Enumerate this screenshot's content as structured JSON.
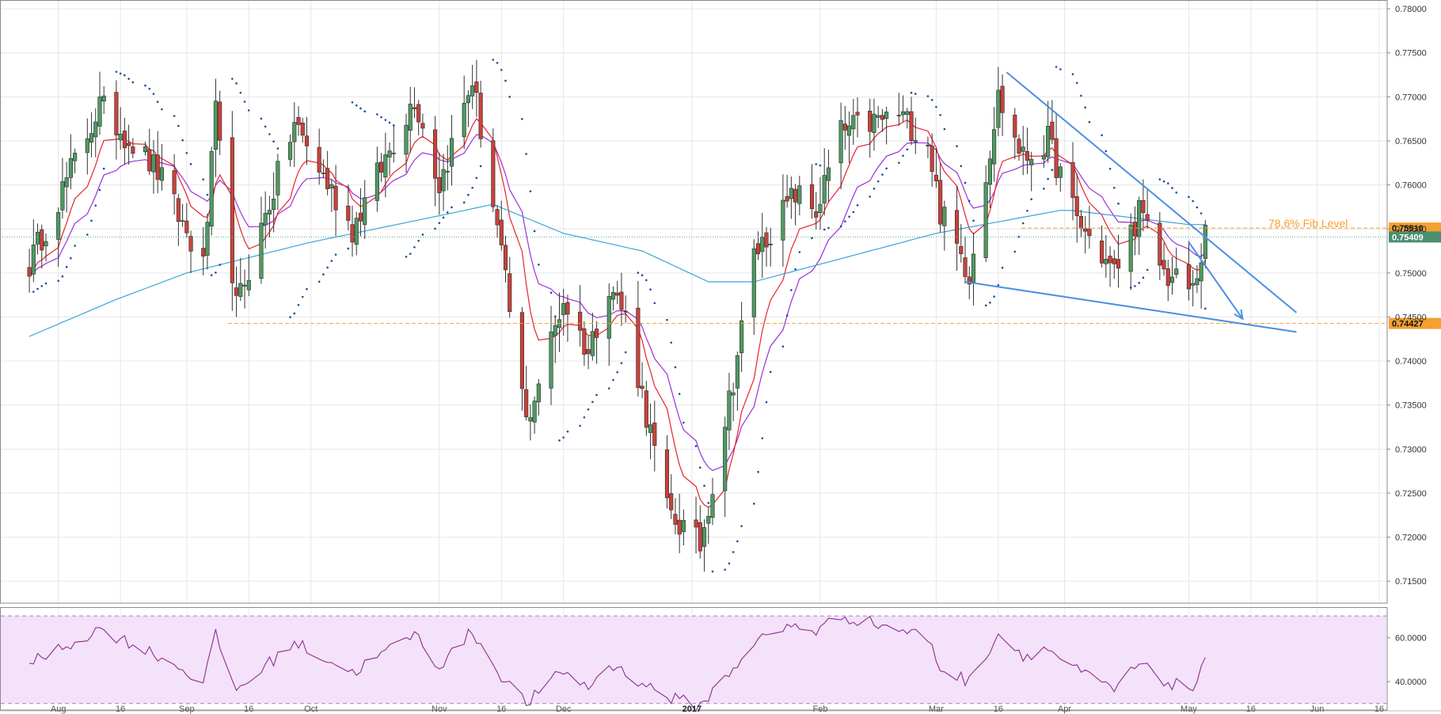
{
  "chart_data": {
    "type": "candlestick",
    "title": "",
    "y_axis": {
      "range": [
        0.7125,
        0.781
      ],
      "ticks": [
        "0.78000",
        "0.77500",
        "0.77000",
        "0.76500",
        "0.76000",
        "0.75500",
        "0.75000",
        "0.74500",
        "0.74000",
        "0.73500",
        "0.73000",
        "0.72500",
        "0.72000",
        "0.71500"
      ]
    },
    "x_axis": {
      "ticks": [
        {
          "label": "Aug",
          "date": "2016-08-01"
        },
        {
          "label": "16",
          "date": "2016-08-16"
        },
        {
          "label": "Sep",
          "date": "2016-09-01"
        },
        {
          "label": "16",
          "date": "2016-09-16"
        },
        {
          "label": "Oct",
          "date": "2016-10-01"
        },
        {
          "label": "Nov",
          "date": "2016-11-01"
        },
        {
          "label": "16",
          "date": "2016-11-16"
        },
        {
          "label": "Dec",
          "date": "2016-12-01"
        },
        {
          "label": "2017",
          "date": "2017-01-01",
          "bold": true
        },
        {
          "label": "Feb",
          "date": "2017-02-01"
        },
        {
          "label": "Mar",
          "date": "2017-03-01"
        },
        {
          "label": "16",
          "date": "2017-03-16"
        },
        {
          "label": "Apr",
          "date": "2017-04-01"
        },
        {
          "label": "May",
          "date": "2017-05-01"
        },
        {
          "label": "16",
          "date": "2017-05-16"
        },
        {
          "label": "Jun",
          "date": "2017-06-01"
        },
        {
          "label": "16",
          "date": "2017-06-16"
        }
      ]
    },
    "anchors": [
      [
        "2016-07-25",
        0.751
      ],
      [
        "2016-08-11",
        0.769
      ],
      [
        "2016-08-25",
        0.7615
      ],
      [
        "2016-09-05",
        0.7505
      ],
      [
        "2016-09-08",
        0.768
      ],
      [
        "2016-09-13",
        0.746
      ],
      [
        "2016-09-27",
        0.767
      ],
      [
        "2016-10-11",
        0.755
      ],
      [
        "2016-10-26",
        0.77
      ],
      [
        "2016-11-01",
        0.76
      ],
      [
        "2016-11-09",
        0.772
      ],
      [
        "2016-11-15",
        0.755
      ],
      [
        "2016-11-22",
        0.733
      ],
      [
        "2016-12-01",
        0.747
      ],
      [
        "2016-12-07",
        0.741
      ],
      [
        "2016-12-12",
        0.749
      ],
      [
        "2016-12-16",
        0.745
      ],
      [
        "2016-12-26",
        0.723
      ],
      [
        "2017-01-03",
        0.719
      ],
      [
        "2017-01-11",
        0.738
      ],
      [
        "2017-01-16",
        0.752
      ],
      [
        "2017-01-26",
        0.759
      ],
      [
        "2017-01-31",
        0.757
      ],
      [
        "2017-02-06",
        0.766
      ],
      [
        "2017-02-20",
        0.768
      ],
      [
        "2017-02-27",
        0.765
      ],
      [
        "2017-03-02",
        0.757
      ],
      [
        "2017-03-09",
        0.75
      ],
      [
        "2017-03-16",
        0.77
      ],
      [
        "2017-03-22",
        0.763
      ],
      [
        "2017-03-28",
        0.765
      ],
      [
        "2017-04-04",
        0.756
      ],
      [
        "2017-04-13",
        0.75
      ],
      [
        "2017-04-19",
        0.757
      ],
      [
        "2017-04-25",
        0.75
      ],
      [
        "2017-05-02",
        0.748
      ],
      [
        "2017-05-05",
        0.754
      ]
    ],
    "sma100_anchors": [
      [
        "2016-07-25",
        0.7428
      ],
      [
        "2016-08-15",
        0.747
      ],
      [
        "2016-09-01",
        0.75
      ],
      [
        "2016-10-01",
        0.7535
      ],
      [
        "2016-11-01",
        0.7565
      ],
      [
        "2016-11-14",
        0.7578
      ],
      [
        "2016-12-01",
        0.7545
      ],
      [
        "2016-12-20",
        0.7525
      ],
      [
        "2017-01-05",
        0.749
      ],
      [
        "2017-01-16",
        0.749
      ],
      [
        "2017-02-01",
        0.751
      ],
      [
        "2017-03-01",
        0.7545
      ],
      [
        "2017-04-01",
        0.7572
      ],
      [
        "2017-05-01",
        0.7555
      ]
    ],
    "levels": [
      {
        "label": "0.75510",
        "value": 0.7551,
        "color": "#f5a031",
        "text_color": "#111111"
      },
      {
        "label": "0.75409",
        "value": 0.75409,
        "color": "#4a8f6e",
        "text_color": "#ffffff"
      },
      {
        "label": "0.74427",
        "value": 0.74427,
        "color": "#f5a031",
        "text_color": "#111111"
      }
    ],
    "annotation": "78.6% Fib Level",
    "trendlines": [
      {
        "from": [
          "2017-03-18",
          0.7728
        ],
        "to": [
          "2017-05-27",
          0.7455
        ]
      },
      {
        "from": [
          "2017-03-08",
          0.749
        ],
        "to": [
          "2017-05-27",
          0.7433
        ]
      }
    ],
    "arrow": {
      "from": [
        "2017-05-01",
        0.7535
      ],
      "to": [
        "2017-05-14",
        0.7448
      ]
    },
    "rsi": {
      "ticks": [
        "60.0000",
        "40.0000"
      ],
      "overbought": 70,
      "oversold": 30,
      "range": [
        27,
        74
      ],
      "anchors": [
        [
          "2016-07-25",
          48
        ],
        [
          "2016-08-11",
          64
        ],
        [
          "2016-08-25",
          52
        ],
        [
          "2016-09-05",
          40
        ],
        [
          "2016-09-08",
          61
        ],
        [
          "2016-09-13",
          36
        ],
        [
          "2016-09-27",
          58
        ],
        [
          "2016-10-11",
          44
        ],
        [
          "2016-10-26",
          62
        ],
        [
          "2016-11-01",
          47
        ],
        [
          "2016-11-09",
          63
        ],
        [
          "2016-11-15",
          45
        ],
        [
          "2016-11-22",
          30
        ],
        [
          "2016-12-01",
          45
        ],
        [
          "2016-12-07",
          37
        ],
        [
          "2016-12-12",
          48
        ],
        [
          "2016-12-16",
          44
        ],
        [
          "2016-12-26",
          33
        ],
        [
          "2017-01-03",
          29
        ],
        [
          "2017-01-11",
          46
        ],
        [
          "2017-01-16",
          58
        ],
        [
          "2017-01-26",
          66
        ],
        [
          "2017-01-31",
          63
        ],
        [
          "2017-02-06",
          70
        ],
        [
          "2017-02-20",
          64
        ],
        [
          "2017-02-27",
          60
        ],
        [
          "2017-03-02",
          46
        ],
        [
          "2017-03-09",
          40
        ],
        [
          "2017-03-16",
          62
        ],
        [
          "2017-03-22",
          52
        ],
        [
          "2017-03-28",
          55
        ],
        [
          "2017-04-04",
          45
        ],
        [
          "2017-04-13",
          36
        ],
        [
          "2017-04-19",
          48
        ],
        [
          "2017-04-25",
          40
        ],
        [
          "2017-05-02",
          37
        ],
        [
          "2017-05-05",
          48
        ]
      ]
    },
    "colors": {
      "up": "#4e9a62",
      "down": "#c8423b",
      "wick": "#333333",
      "ema_fast": "#e8222d",
      "ema_slow": "#9b30d9",
      "sma": "#3ba5d8",
      "sar": "#1a4a9a",
      "trend": "#4a90e2",
      "rsi_line": "#8e2e8e",
      "rsi_fill": "#f3e2f9",
      "level_dotted": "#5aa88a"
    }
  }
}
